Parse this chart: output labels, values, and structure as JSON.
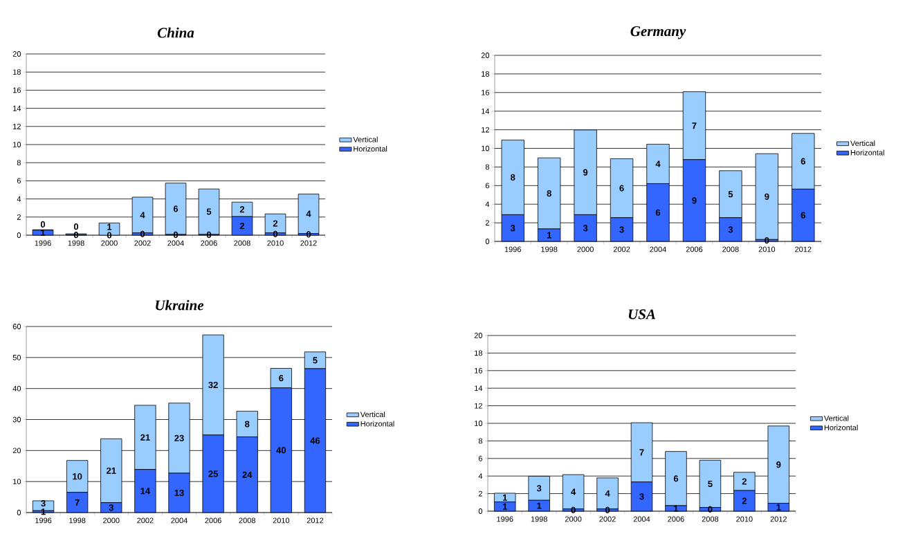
{
  "chart_data": [
    {
      "type": "bar",
      "title": "China",
      "categories": [
        "1996",
        "1998",
        "2000",
        "2002",
        "2004",
        "2006",
        "2008",
        "2010",
        "2012"
      ],
      "stacked": true,
      "ylim": [
        0,
        20
      ],
      "yticks": [
        0,
        2,
        4,
        6,
        8,
        10,
        12,
        14,
        16,
        18,
        20
      ],
      "grid": "y",
      "legend": "right",
      "series": [
        {
          "name": "Horizontal",
          "color": "#3366ff",
          "values": [
            0.55,
            0.05,
            0,
            0.25,
            0.08,
            0.08,
            2.05,
            0.25,
            0.18
          ],
          "value_labels": [
            "1",
            "0",
            "0",
            "0",
            "0",
            "0",
            "2",
            "0",
            "0"
          ]
        },
        {
          "name": "Vertical",
          "color": "#99ccff",
          "values": [
            0.05,
            0.1,
            1.35,
            3.95,
            5.67,
            5.02,
            1.6,
            2.1,
            4.36
          ],
          "value_labels": [
            "0",
            "0",
            "1",
            "4",
            "6",
            "5",
            "2",
            "2",
            "4"
          ]
        }
      ]
    },
    {
      "type": "bar",
      "title": "Germany",
      "categories": [
        "1996",
        "1998",
        "2000",
        "2002",
        "2004",
        "2006",
        "2008",
        "2010",
        "2012"
      ],
      "stacked": true,
      "ylim": [
        0,
        20
      ],
      "yticks": [
        0,
        2,
        4,
        6,
        8,
        10,
        12,
        14,
        16,
        18,
        20
      ],
      "grid": "y",
      "legend": "right",
      "series": [
        {
          "name": "Horizontal",
          "color": "#3366ff",
          "values": [
            2.87,
            1.34,
            2.87,
            2.55,
            6.21,
            8.79,
            2.55,
            0.2,
            5.62
          ],
          "value_labels": [
            "3",
            "1",
            "3",
            "3",
            "6",
            "9",
            "3",
            "0",
            "6"
          ]
        },
        {
          "name": "Vertical",
          "color": "#99ccff",
          "values": [
            8.03,
            7.64,
            9.11,
            6.34,
            4.24,
            7.3,
            5.05,
            9.23,
            5.99
          ],
          "value_labels": [
            "8",
            "8",
            "9",
            "6",
            "4",
            "7",
            "5",
            "9",
            "6"
          ]
        }
      ]
    },
    {
      "type": "bar",
      "title": "Ukraine",
      "categories": [
        "1996",
        "1998",
        "2000",
        "2002",
        "2004",
        "2006",
        "2008",
        "2010",
        "2012"
      ],
      "stacked": true,
      "ylim": [
        0,
        60
      ],
      "yticks": [
        0,
        10,
        20,
        30,
        40,
        50,
        60
      ],
      "grid": "y",
      "legend": "right",
      "series": [
        {
          "name": "Horizontal",
          "color": "#3366ff",
          "values": [
            0.6,
            6.5,
            3.2,
            13.9,
            12.7,
            25,
            24.4,
            40.2,
            46.4
          ],
          "value_labels": [
            "1",
            "7",
            "3",
            "14",
            "13",
            "25",
            "24",
            "40",
            "46"
          ]
        },
        {
          "name": "Vertical",
          "color": "#99ccff",
          "values": [
            3.2,
            10.3,
            20.6,
            20.7,
            22.6,
            32.3,
            8.3,
            6.3,
            5.4
          ],
          "value_labels": [
            "3",
            "10",
            "21",
            "21",
            "23",
            "32",
            "8",
            "6",
            "5"
          ]
        }
      ]
    },
    {
      "type": "bar",
      "title": "USA",
      "categories": [
        "1996",
        "1998",
        "2000",
        "2002",
        "2004",
        "2006",
        "2008",
        "2010",
        "2012"
      ],
      "stacked": true,
      "ylim": [
        0,
        20
      ],
      "yticks": [
        0,
        2,
        4,
        6,
        8,
        10,
        12,
        14,
        16,
        18,
        20
      ],
      "grid": "y",
      "legend": "right",
      "series": [
        {
          "name": "Horizontal",
          "color": "#3366ff",
          "values": [
            1.05,
            1.24,
            0.25,
            0.25,
            3.32,
            0.63,
            0.42,
            2.35,
            0.9
          ],
          "value_labels": [
            "1",
            "1",
            "0",
            "0",
            "3",
            "1",
            "0",
            "2",
            "1"
          ]
        },
        {
          "name": "Vertical",
          "color": "#99ccff",
          "values": [
            1.0,
            2.74,
            3.91,
            3.54,
            6.75,
            6.17,
            5.38,
            2.08,
            8.8
          ],
          "value_labels": [
            "1",
            "3",
            "4",
            "4",
            "7",
            "6",
            "5",
            "2",
            "9"
          ]
        }
      ]
    }
  ]
}
